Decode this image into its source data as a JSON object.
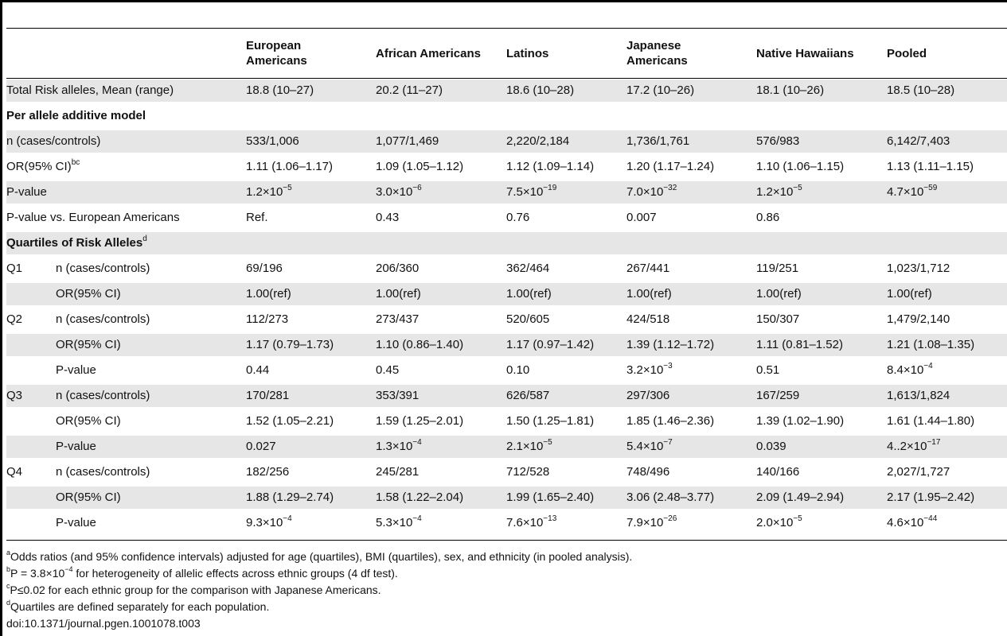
{
  "headers": {
    "ea": "European\nAmericans",
    "aa": "African Americans",
    "la": "Latinos",
    "ja": "Japanese\nAmericans",
    "nh": "Native Hawaiians",
    "po": "Pooled"
  },
  "rows": [
    {
      "type": "data",
      "label": "Total Risk alleles, Mean (range)",
      "sub": "",
      "cells": [
        "18.8 (10–27)",
        "20.2 (11–27)",
        "18.6 (10–28)",
        "17.2 (10–26)",
        "18.1 (10–26)",
        "18.5 (10–28)"
      ]
    },
    {
      "type": "section",
      "label": "Per allele additive model",
      "sup": ""
    },
    {
      "type": "data",
      "label": "n (cases/controls)",
      "sub": "",
      "cells": [
        "533/1,006",
        "1,077/1,469",
        "2,220/2,184",
        "1,736/1,761",
        "576/983",
        "6,142/7,403"
      ]
    },
    {
      "type": "data",
      "label": "OR(95% CI)",
      "labelSup": "bc",
      "sub": "",
      "cells": [
        "1.11 (1.06–1.17)",
        "1.09 (1.05–1.12)",
        "1.12 (1.09–1.14)",
        "1.20 (1.17–1.24)",
        "1.10 (1.06–1.15)",
        "1.13 (1.11–1.15)"
      ]
    },
    {
      "type": "data",
      "label": "P-value",
      "sub": "",
      "cells": [
        "1.2×10|−5",
        "3.0×10|−6",
        "7.5×10|−19",
        "7.0×10|−32",
        "1.2×10|−5",
        "4.7×10|−59"
      ]
    },
    {
      "type": "data",
      "label": "P-value vs. European Americans",
      "sub": "",
      "cells": [
        "Ref.",
        "0.43",
        "0.76",
        "0.007",
        "0.86",
        ""
      ]
    },
    {
      "type": "section",
      "label": "Quartiles of Risk Alleles",
      "sup": "d"
    },
    {
      "type": "data",
      "label": "Q1",
      "sub": "n (cases/controls)",
      "cells": [
        "69/196",
        "206/360",
        "362/464",
        "267/441",
        "119/251",
        "1,023/1,712"
      ]
    },
    {
      "type": "data",
      "label": "",
      "sub": "OR(95% CI)",
      "cells": [
        "1.00(ref)",
        "1.00(ref)",
        "1.00(ref)",
        "1.00(ref)",
        "1.00(ref)",
        "1.00(ref)"
      ]
    },
    {
      "type": "data",
      "label": "Q2",
      "sub": "n (cases/controls)",
      "cells": [
        "112/273",
        "273/437",
        "520/605",
        "424/518",
        "150/307",
        "1,479/2,140"
      ]
    },
    {
      "type": "data",
      "label": "",
      "sub": "OR(95% CI)",
      "cells": [
        "1.17 (0.79–1.73)",
        "1.10 (0.86–1.40)",
        "1.17 (0.97–1.42)",
        "1.39 (1.12–1.72)",
        "1.11 (0.81–1.52)",
        "1.21 (1.08–1.35)"
      ]
    },
    {
      "type": "data",
      "label": "",
      "sub": "P-value",
      "cells": [
        "0.44",
        "0.45",
        "0.10",
        "3.2×10|−3",
        "0.51",
        "8.4×10|−4"
      ]
    },
    {
      "type": "data",
      "label": "Q3",
      "sub": "n (cases/controls)",
      "cells": [
        "170/281",
        "353/391",
        "626/587",
        "297/306",
        "167/259",
        "1,613/1,824"
      ]
    },
    {
      "type": "data",
      "label": "",
      "sub": "OR(95% CI)",
      "cells": [
        "1.52 (1.05–2.21)",
        "1.59 (1.25–2.01)",
        "1.50 (1.25–1.81)",
        "1.85 (1.46–2.36)",
        "1.39 (1.02–1.90)",
        "1.61 (1.44–1.80)"
      ]
    },
    {
      "type": "data",
      "label": "",
      "sub": "P-value",
      "cells": [
        "0.027",
        "1.3×10|−4",
        "2.1×10|−5",
        "5.4×10|−7",
        "0.039",
        "4..2×10|−17"
      ]
    },
    {
      "type": "data",
      "label": "Q4",
      "sub": "n (cases/controls)",
      "cells": [
        "182/256",
        "245/281",
        "712/528",
        "748/496",
        "140/166",
        "2,027/1,727"
      ]
    },
    {
      "type": "data",
      "label": "",
      "sub": "OR(95% CI)",
      "cells": [
        "1.88 (1.29–2.74)",
        "1.58 (1.22–2.04)",
        "1.99 (1.65–2.40)",
        "3.06 (2.48–3.77)",
        "2.09 (1.49–2.94)",
        "2.17 (1.95–2.42)"
      ]
    },
    {
      "type": "data",
      "label": "",
      "sub": "P-value",
      "cells": [
        "9.3×10|−4",
        "5.3×10|−4",
        "7.6×10|−13",
        "7.9×10|−26",
        "2.0×10|−5",
        "4.6×10|−44"
      ]
    }
  ],
  "footnotes": [
    {
      "mark": "a",
      "text": "Odds ratios (and 95% confidence intervals) adjusted for age (quartiles), BMI (quartiles), sex, and ethnicity (in pooled analysis)."
    },
    {
      "mark": "b",
      "text": "P = 3.8×10|−4| for heterogeneity of allelic effects across ethnic groups (4 df test)."
    },
    {
      "mark": "c",
      "text": "P≤0.02 for each ethnic group for the comparison with Japanese Americans."
    },
    {
      "mark": "d",
      "text": "Quartiles are defined separately for each population."
    },
    {
      "mark": "",
      "text": "doi:10.1371/journal.pgen.1001078.t003"
    }
  ]
}
